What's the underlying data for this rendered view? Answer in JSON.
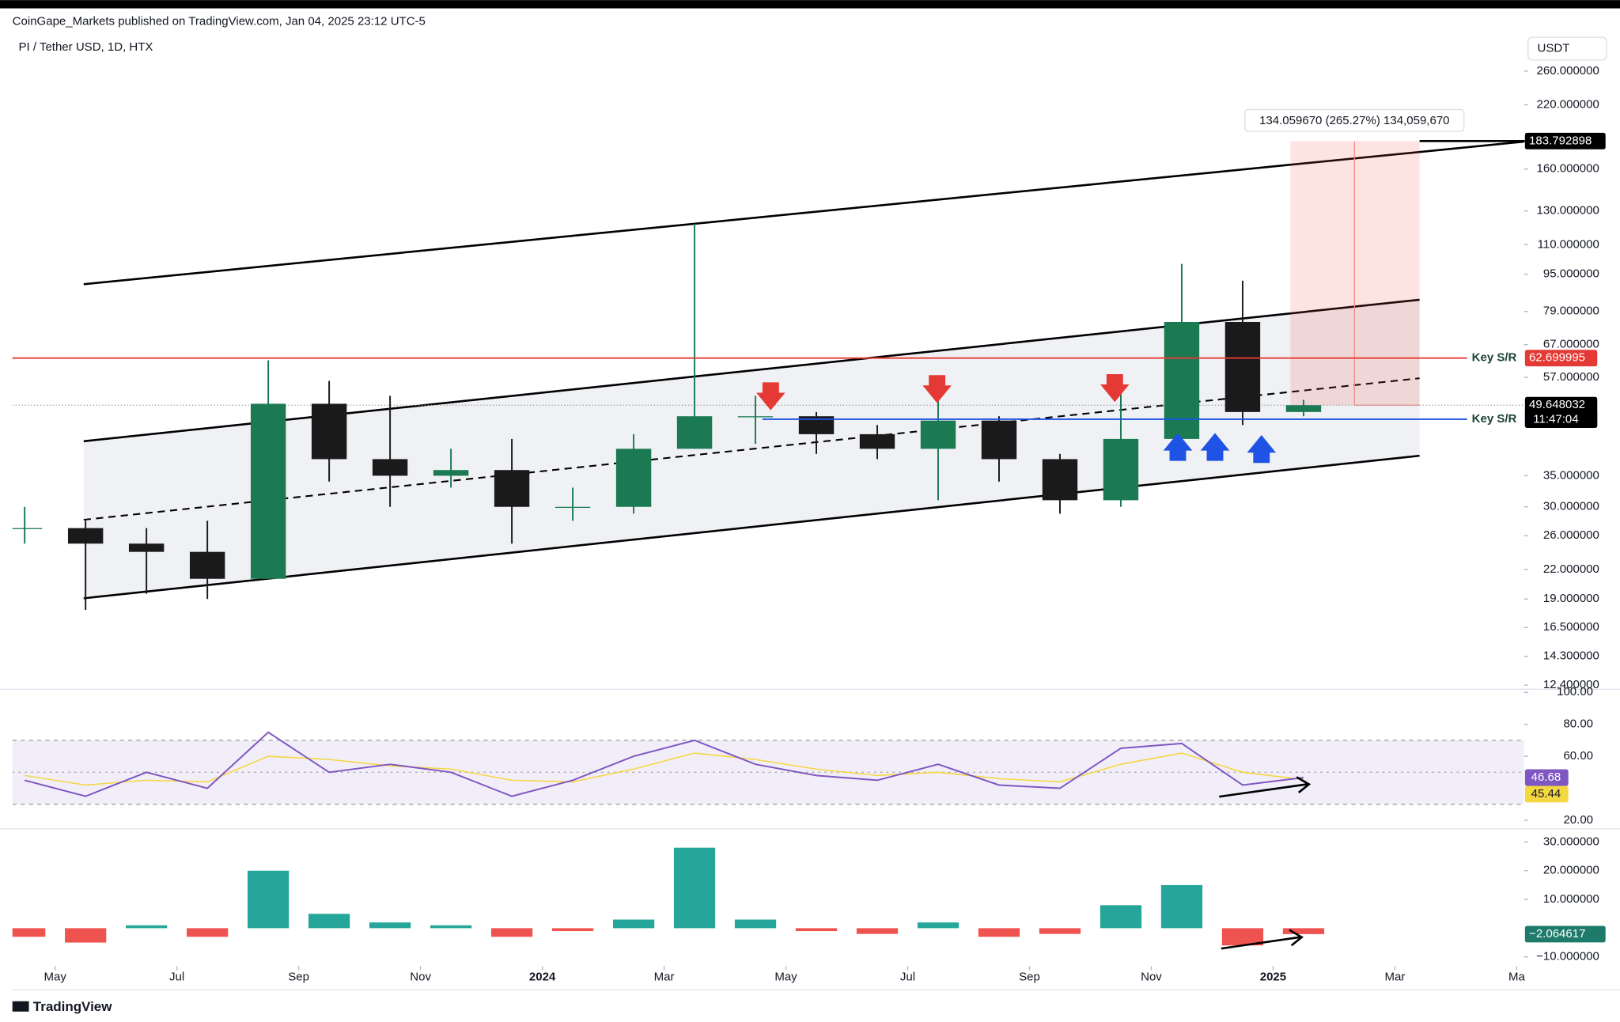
{
  "header": {
    "publisher": "CoinGape_Markets published on TradingView.com, Jan 04, 2025 23:12 UTC-5"
  },
  "footer": {
    "brand": "TradingView"
  },
  "chart_data": [
    {
      "type": "candlestick",
      "title": "PI / Tether USD, 1D, HTX",
      "currency": "USDT",
      "x": [
        "2023-04",
        "2023-05",
        "2023-06",
        "2023-07",
        "2023-08",
        "2023-09",
        "2023-10",
        "2023-11",
        "2023-12",
        "2024-01",
        "2024-02",
        "2024-03",
        "2024-04",
        "2024-05",
        "2024-06",
        "2024-07",
        "2024-08",
        "2024-09",
        "2024-10",
        "2024-11",
        "2024-12",
        "2025-01"
      ],
      "open": [
        27,
        27,
        25,
        24,
        21,
        50,
        38,
        35,
        36,
        30,
        30,
        40,
        47,
        47,
        43,
        40,
        46,
        38,
        31,
        42,
        75,
        48
      ],
      "high": [
        30,
        28,
        27,
        28,
        62,
        56,
        52,
        40,
        42,
        33,
        43,
        122,
        52,
        48,
        45,
        52,
        47,
        39,
        56,
        100,
        92,
        51
      ],
      "low": [
        25,
        18,
        19.5,
        19,
        21,
        34,
        30,
        33,
        25,
        28,
        29,
        40,
        41,
        39,
        38,
        31,
        34,
        29,
        30,
        40,
        45,
        47
      ],
      "close": [
        27,
        25,
        24,
        21,
        50,
        38,
        35,
        36,
        30,
        30,
        40,
        47,
        47,
        43,
        40,
        46,
        38,
        31,
        42,
        75,
        48,
        49.648032
      ],
      "up_color": "#1b7a52",
      "down_color": "#1a1a1a",
      "log_scale": true,
      "ylim": [
        12.15,
        317
      ],
      "yticks": [
        {
          "value": 260,
          "label": "260.000000"
        },
        {
          "value": 220,
          "label": "220.000000"
        },
        {
          "value": 160,
          "label": "160.000000"
        },
        {
          "value": 130,
          "label": "130.000000"
        },
        {
          "value": 110,
          "label": "110.000000"
        },
        {
          "value": 95,
          "label": "95.000000"
        },
        {
          "value": 79,
          "label": "79.000000"
        },
        {
          "value": 67,
          "label": "67.000000"
        },
        {
          "value": 57,
          "label": "57.000000"
        },
        {
          "value": 35,
          "label": "35.000000"
        },
        {
          "value": 30,
          "label": "30.000000"
        },
        {
          "value": 26,
          "label": "26.000000"
        },
        {
          "value": 22,
          "label": "22.000000"
        },
        {
          "value": 19,
          "label": "19.000000"
        },
        {
          "value": 16.5,
          "label": "16.500000"
        },
        {
          "value": 14.3,
          "label": "14.300000"
        },
        {
          "value": 12.4,
          "label": "12.400000"
        }
      ],
      "xlim": [
        "2023-04",
        "2025-05"
      ],
      "xticks": [
        {
          "value": "2023-05",
          "label": "May"
        },
        {
          "value": "2023-07",
          "label": "Jul"
        },
        {
          "value": "2023-09",
          "label": "Sep"
        },
        {
          "value": "2023-11",
          "label": "Nov"
        },
        {
          "value": "2024-01",
          "label": "2024"
        },
        {
          "value": "2024-03",
          "label": "Mar"
        },
        {
          "value": "2024-05",
          "label": "May"
        },
        {
          "value": "2024-07",
          "label": "Jul"
        },
        {
          "value": "2024-09",
          "label": "Sep"
        },
        {
          "value": "2024-11",
          "label": "Nov"
        },
        {
          "value": "2025-01",
          "label": "2025"
        },
        {
          "value": "2025-03",
          "label": "Mar"
        },
        {
          "value": "2025-05",
          "label": "Ma"
        }
      ],
      "levels": [
        {
          "name": "Key S/R",
          "value": 62.699995,
          "color": "#e53935"
        },
        {
          "name": "Key S/R",
          "value": 46.321237,
          "color": "#1e53e5"
        }
      ],
      "last_price": 49.648032,
      "countdown": "11:47:04",
      "target": 183.792898,
      "measure": "134.059670 (265.27%) 134,059,670"
    },
    {
      "type": "line",
      "x": [
        "2023-04",
        "2023-05",
        "2023-06",
        "2023-07",
        "2023-08",
        "2023-09",
        "2023-10",
        "2023-11",
        "2023-12",
        "2024-01",
        "2024-02",
        "2024-03",
        "2024-04",
        "2024-05",
        "2024-06",
        "2024-07",
        "2024-08",
        "2024-09",
        "2024-10",
        "2024-11",
        "2024-12",
        "2025-01"
      ],
      "series": [
        {
          "color": "#7e57c2",
          "values": [
            45,
            35,
            50,
            40,
            75,
            50,
            55,
            50,
            35,
            45,
            60,
            70,
            55,
            48,
            45,
            55,
            42,
            40,
            65,
            68,
            42,
            46.68
          ]
        },
        {
          "color": "#f5d742",
          "values": [
            48,
            42,
            45,
            44,
            60,
            58,
            54,
            52,
            45,
            44,
            52,
            62,
            58,
            52,
            48,
            50,
            46,
            44,
            55,
            62,
            50,
            45.44
          ]
        }
      ],
      "ylim": [
        16,
        101.3
      ],
      "band": [
        30,
        70
      ],
      "midline": 50,
      "band_color": "#7e57c2",
      "yticks": [
        {
          "value": 100,
          "label": "100.00"
        },
        {
          "value": 80,
          "label": "80.00"
        },
        {
          "value": 60,
          "label": "60.00"
        },
        {
          "value": 20,
          "label": "20.00"
        }
      ]
    },
    {
      "type": "bar",
      "x": [
        "2023-04",
        "2023-05",
        "2023-06",
        "2023-07",
        "2023-08",
        "2023-09",
        "2023-10",
        "2023-11",
        "2023-12",
        "2024-01",
        "2024-02",
        "2024-03",
        "2024-04",
        "2024-05",
        "2024-06",
        "2024-07",
        "2024-08",
        "2024-09",
        "2024-10",
        "2024-11",
        "2024-12",
        "2025-01"
      ],
      "values": [
        -3,
        -5,
        1,
        -3,
        20,
        5,
        2,
        1,
        -3,
        -1,
        3,
        28,
        3,
        -1,
        -2,
        2,
        -3,
        -2,
        8,
        15,
        -6,
        -2.064617
      ],
      "value_labels": [
        null,
        null,
        null,
        null,
        null,
        null,
        null,
        null,
        null,
        null,
        null,
        null,
        null,
        null,
        null,
        null,
        null,
        null,
        null,
        null,
        null,
        "−2.064617"
      ],
      "up_color": "#26a69a",
      "down_color": "#ef5350",
      "ylim": [
        -13.2,
        33.9
      ],
      "yticks": [
        {
          "value": 30,
          "label": "30.000000"
        },
        {
          "value": 20,
          "label": "20.000000"
        },
        {
          "value": 10,
          "label": "10.000000"
        },
        {
          "value": -10,
          "label": "−10.000000"
        }
      ]
    }
  ]
}
